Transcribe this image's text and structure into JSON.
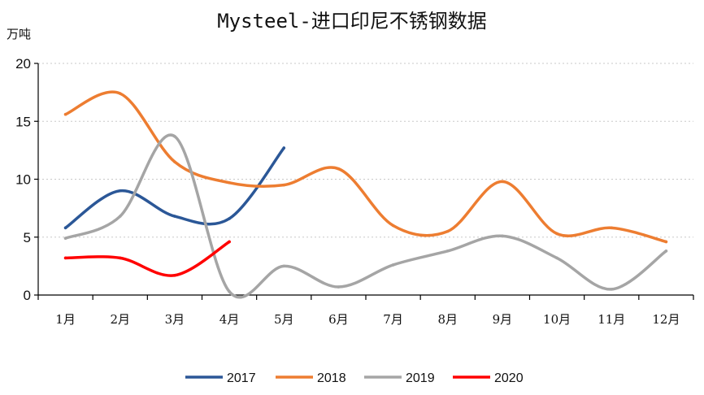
{
  "chart_data": {
    "type": "line",
    "title": "Mysteel-进口印尼不锈钢数据",
    "ylabel": "万吨",
    "xlabel": "",
    "ylim": [
      0,
      20
    ],
    "yticks": [
      "0",
      "5",
      "10",
      "15",
      "20"
    ],
    "categories": [
      "1月",
      "2月",
      "3月",
      "4月",
      "5月",
      "6月",
      "7月",
      "8月",
      "9月",
      "10月",
      "11月",
      "12月"
    ],
    "grid": "horizontal-dotted",
    "legend": "bottom-center",
    "series": [
      {
        "name": "2017",
        "color": "#2b5797",
        "x": [
          1,
          2,
          3,
          4,
          5
        ],
        "values": [
          5.8,
          9.0,
          6.8,
          6.6,
          12.7
        ]
      },
      {
        "name": "2018",
        "color": "#ed7d31",
        "x": [
          1,
          2,
          3,
          4,
          5,
          6,
          7,
          8,
          9,
          10,
          11,
          12
        ],
        "values": [
          15.6,
          17.4,
          11.5,
          9.7,
          9.5,
          10.9,
          6.0,
          5.5,
          9.8,
          5.3,
          5.8,
          4.6
        ]
      },
      {
        "name": "2019",
        "color": "#a5a5a5",
        "x": [
          1,
          2,
          3,
          4,
          5,
          6,
          7,
          8,
          9,
          10,
          11,
          12
        ],
        "values": [
          4.9,
          6.8,
          13.7,
          0.3,
          2.5,
          0.7,
          2.6,
          3.8,
          5.1,
          3.2,
          0.5,
          3.8
        ]
      },
      {
        "name": "2020",
        "color": "#ff0000",
        "x": [
          1,
          2,
          3,
          4
        ],
        "values": [
          3.2,
          3.2,
          1.7,
          4.6
        ]
      }
    ]
  }
}
